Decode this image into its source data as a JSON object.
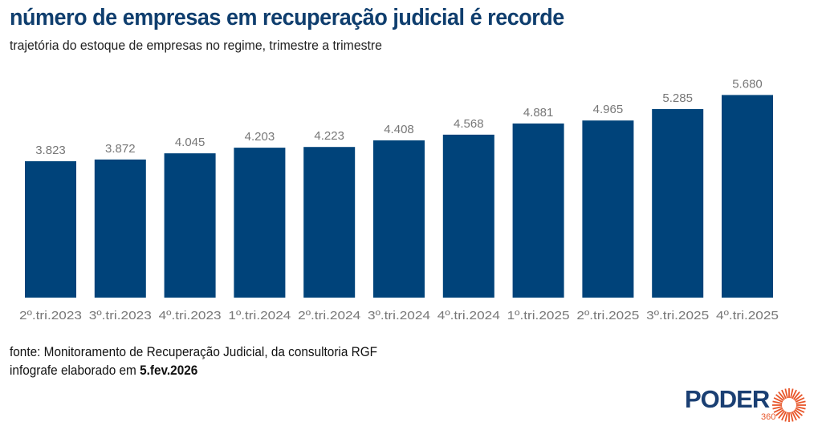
{
  "header": {
    "title": "número de empresas em recuperação judicial é recorde",
    "subtitle": "trajetória do estoque de empresas no regime, trimestre a trimestre"
  },
  "footer": {
    "source": "fonte: Monitoramento de Recuperação Judicial, da consultoria RGF",
    "date_prefix": "infografe elaborado em ",
    "date": "5.fev.2026"
  },
  "logo": {
    "word": "PODER",
    "number": "360"
  },
  "colors": {
    "bar": "#00437a",
    "label": "#777777",
    "title": "#0f3e6e",
    "logo_orange": "#e8562a"
  },
  "chart_data": {
    "type": "bar",
    "title": "número de empresas em recuperação judicial é recorde",
    "xlabel": "",
    "ylabel": "",
    "ylim": [
      0,
      6000
    ],
    "grid": false,
    "categories": [
      "2º.tri.2023",
      "3º.tri.2023",
      "4º.tri.2023",
      "1º.tri.2024",
      "2º.tri.2024",
      "3º.tri.2024",
      "4º.tri.2024",
      "1º.tri.2025",
      "2º.tri.2025",
      "3º.tri.2025",
      "4º.tri.2025"
    ],
    "values": [
      3823,
      3872,
      4045,
      4203,
      4223,
      4408,
      4568,
      4881,
      4965,
      5285,
      5680
    ],
    "value_labels": [
      "3.823",
      "3.872",
      "4.045",
      "4.203",
      "4.223",
      "4.408",
      "4.568",
      "4.881",
      "4.965",
      "5.285",
      "5.680"
    ]
  }
}
